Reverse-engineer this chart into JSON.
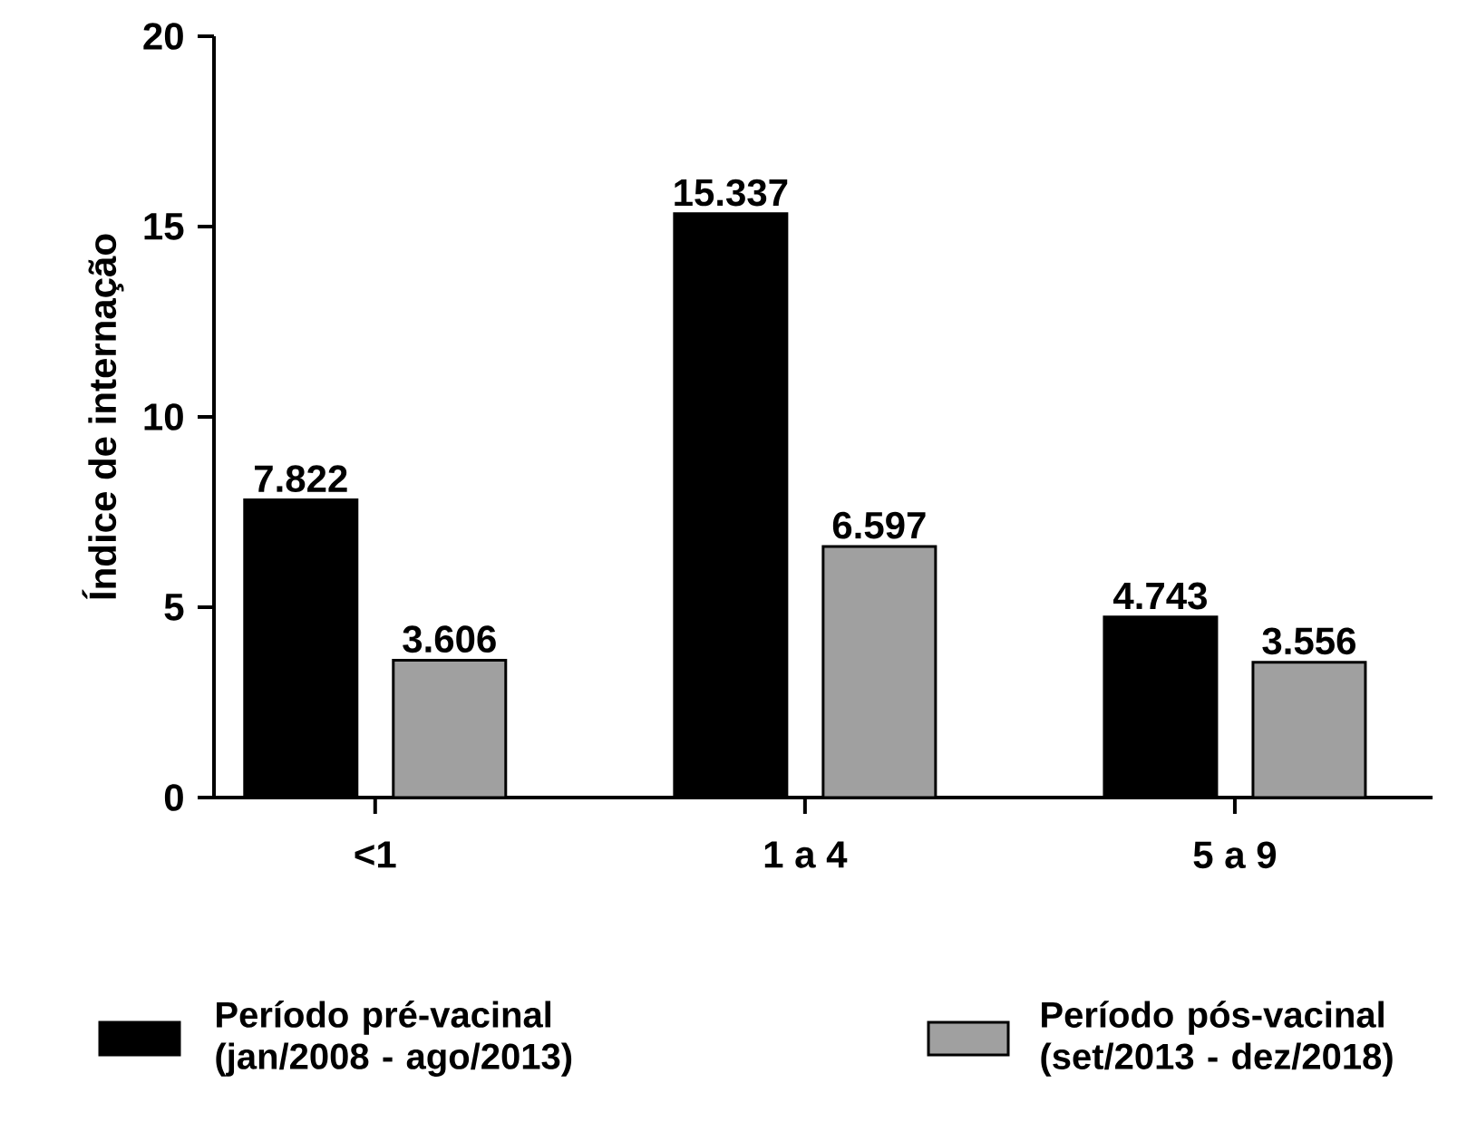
{
  "chart_data": {
    "type": "bar",
    "ylabel": "Índice de internação",
    "categories": [
      "<1",
      "1 a 4",
      "5 a 9"
    ],
    "series": [
      {
        "name": "Período pré-vacinal (jan/2008 - ago/2013)",
        "color": "#000000",
        "values": [
          7.822,
          15.337,
          4.743
        ]
      },
      {
        "name": "Período pós-vacinal (set/2013 - dez/2018)",
        "color": "#a0a0a0",
        "values": [
          3.606,
          6.597,
          3.556
        ]
      }
    ],
    "ylim": [
      0,
      20
    ],
    "yticks": [
      0,
      5,
      10,
      15,
      20
    ],
    "data_labels": true,
    "legend": "bottom"
  }
}
